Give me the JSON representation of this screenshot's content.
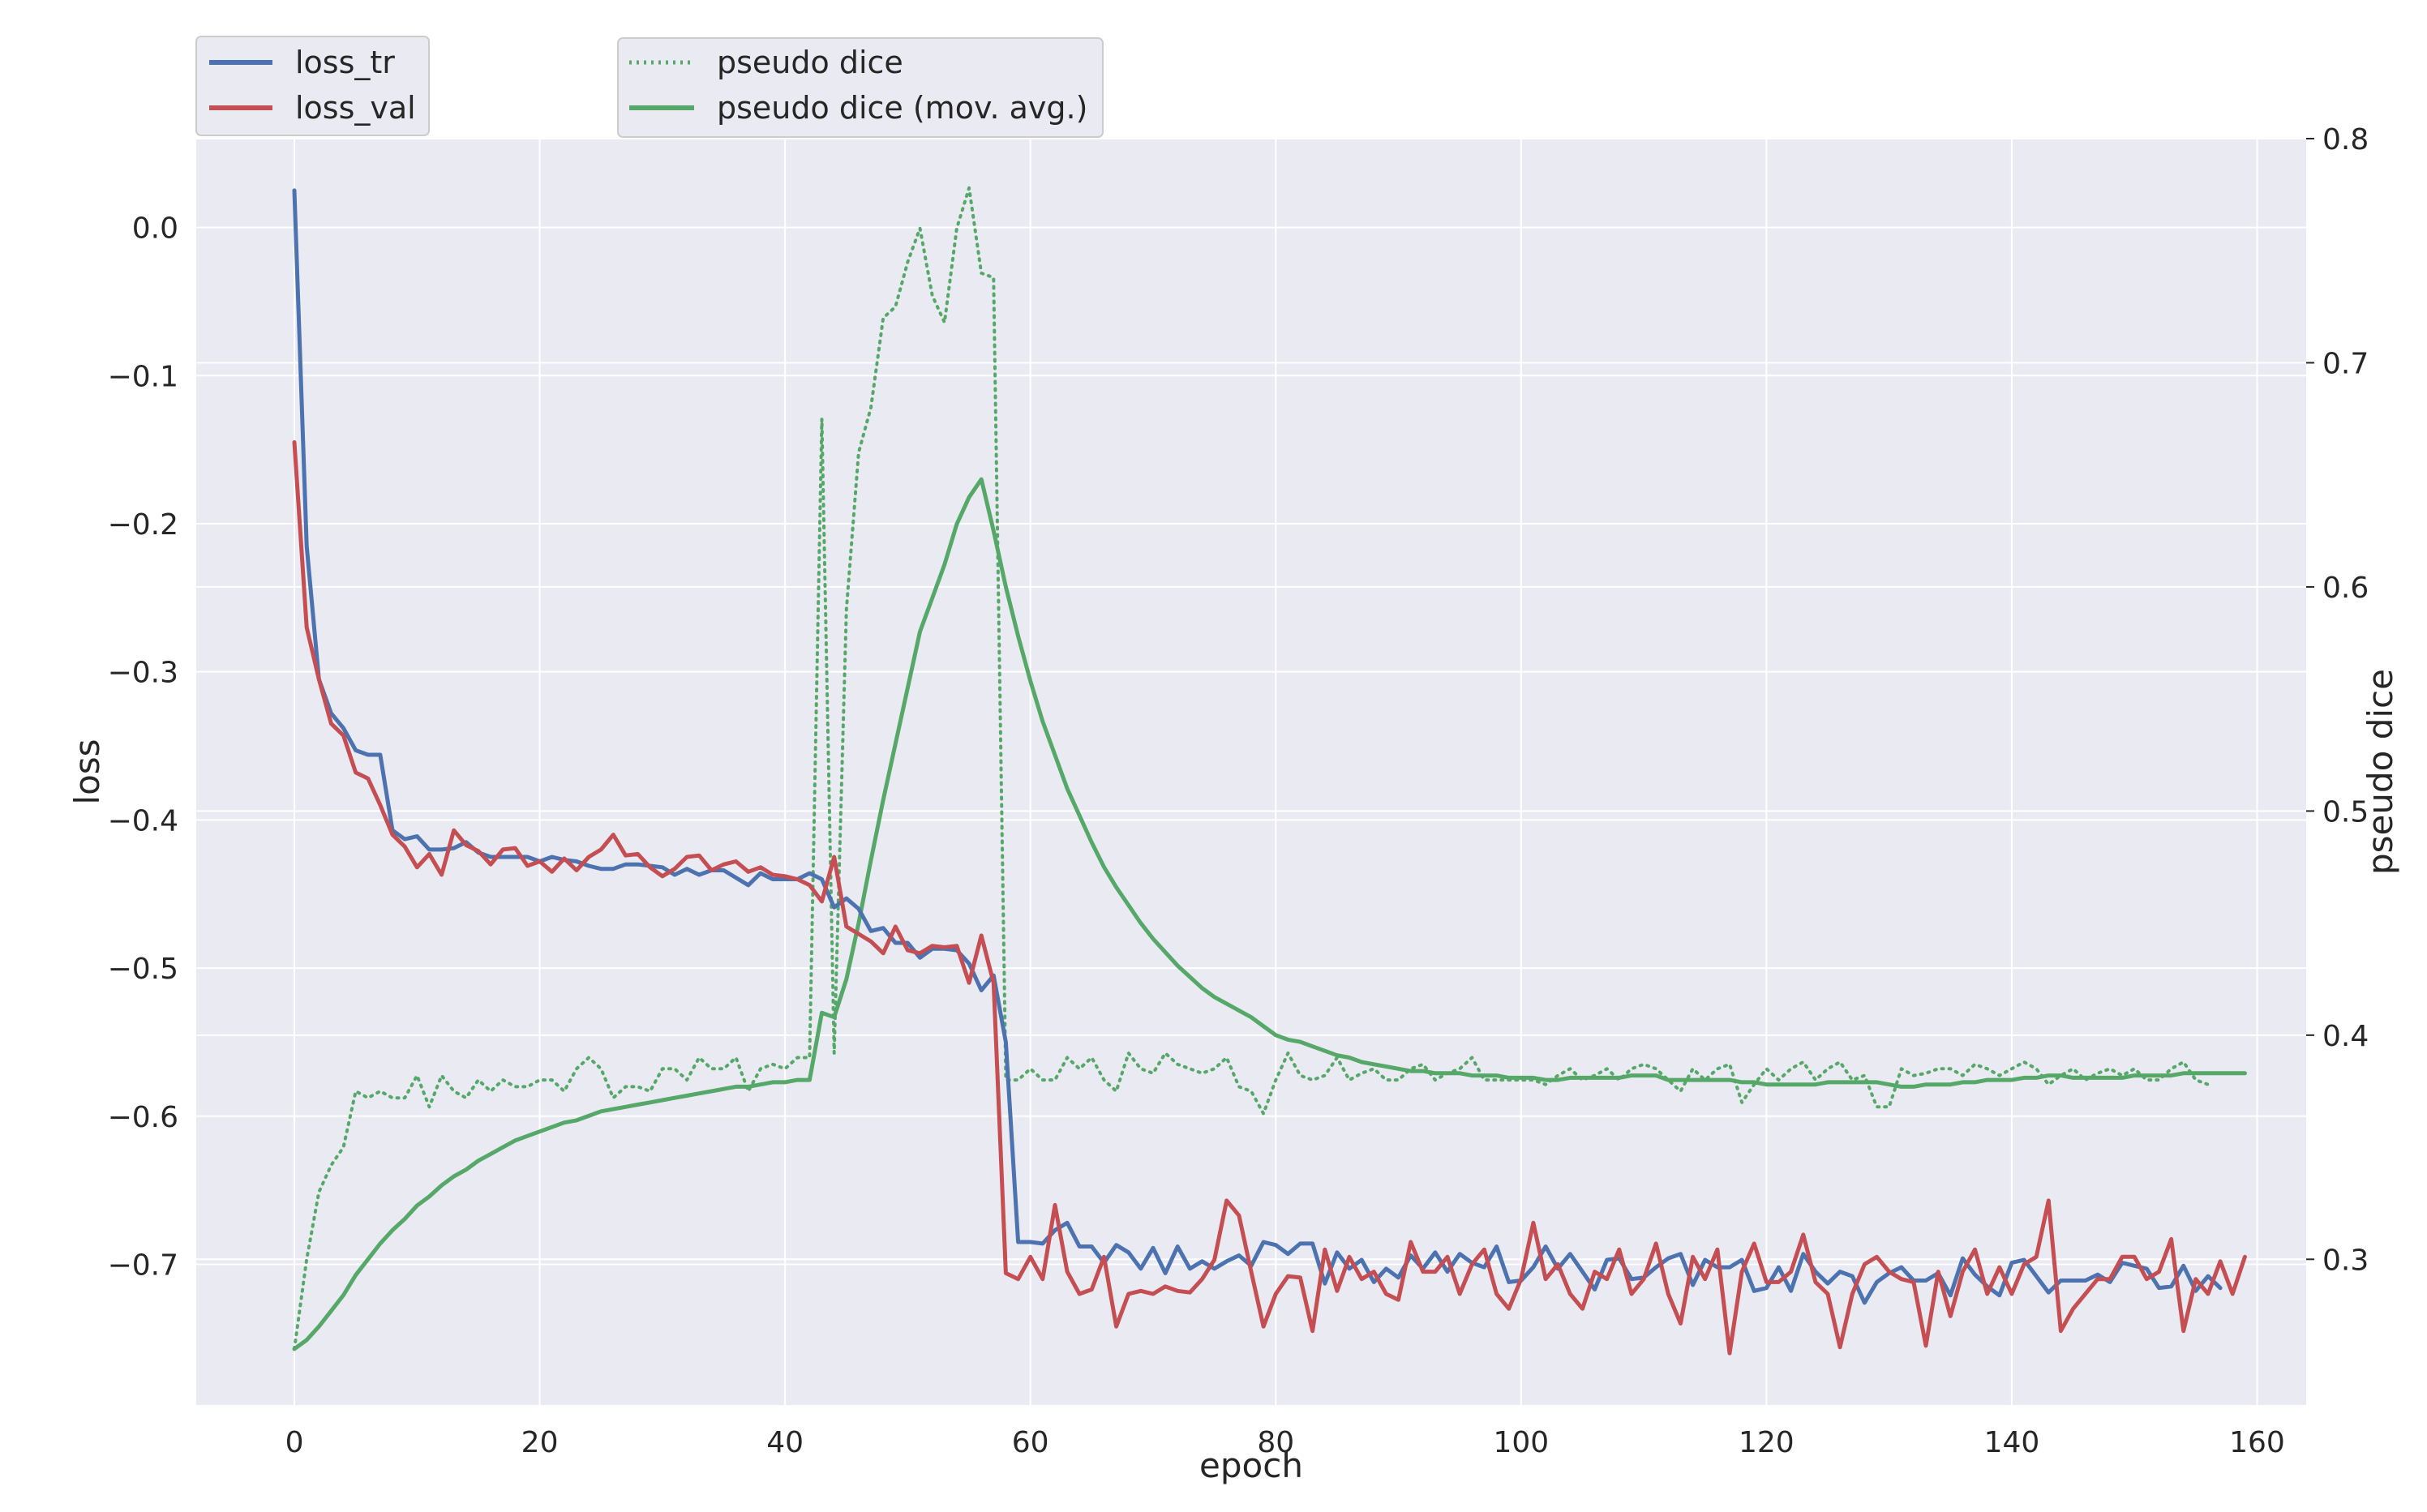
{
  "chart_data": {
    "type": "line",
    "xlabel": "epoch",
    "ylabel_left": "loss",
    "ylabel_right": "pseudo dice",
    "xlim": [
      -8,
      164
    ],
    "ylim_left": [
      -0.795,
      0.06
    ],
    "ylim_right": [
      0.235,
      0.8
    ],
    "grid": true,
    "x_ticks": [
      0,
      20,
      40,
      60,
      80,
      100,
      120,
      140,
      160
    ],
    "y_left_ticks": [
      0.0,
      -0.1,
      -0.2,
      -0.3,
      -0.4,
      -0.5,
      -0.6,
      -0.7
    ],
    "y_right_ticks": [
      0.8,
      0.7,
      0.6,
      0.5,
      0.4,
      0.3
    ],
    "legend_left": {
      "placement": "top-left",
      "entries": [
        "loss_tr",
        "loss_val"
      ]
    },
    "legend_right": {
      "placement": "top-center",
      "entries": [
        "pseudo dice",
        "pseudo dice (mov. avg.)"
      ]
    },
    "colors": {
      "loss_tr": "#4c72b0",
      "loss_val": "#c44e52",
      "pseudo_dice": "#55a868",
      "pseudo_dice_ma": "#55a868",
      "plot_bg": "#eaeaf2",
      "grid": "#ffffff"
    },
    "series": [
      {
        "name": "loss_tr",
        "axis": "left",
        "style": "solid",
        "values": [
          0.025,
          -0.215,
          -0.305,
          -0.328,
          -0.338,
          -0.353,
          -0.356,
          -0.356,
          -0.407,
          -0.413,
          -0.411,
          -0.42,
          -0.42,
          -0.419,
          -0.415,
          -0.422,
          -0.425,
          -0.425,
          -0.425,
          -0.425,
          -0.428,
          -0.425,
          -0.427,
          -0.428,
          -0.431,
          -0.433,
          -0.433,
          -0.43,
          -0.43,
          -0.431,
          -0.432,
          -0.437,
          -0.433,
          -0.437,
          -0.434,
          -0.434,
          -0.439,
          -0.444,
          -0.436,
          -0.44,
          -0.44,
          -0.44,
          -0.436,
          -0.44,
          -0.459,
          -0.453,
          -0.46,
          -0.475,
          -0.473,
          -0.483,
          -0.483,
          -0.493,
          -0.487,
          -0.487,
          -0.488,
          -0.497,
          -0.515,
          -0.505,
          -0.55,
          -0.685,
          -0.685,
          -0.686,
          -0.677,
          -0.672,
          -0.688,
          -0.688,
          -0.699,
          -0.687,
          -0.692,
          -0.703,
          -0.689,
          -0.706,
          -0.688,
          -0.703,
          -0.698,
          -0.703,
          -0.698,
          -0.694,
          -0.701,
          -0.685,
          -0.687,
          -0.693,
          -0.686,
          -0.686,
          -0.713,
          -0.692,
          -0.703,
          -0.697,
          -0.712,
          -0.703,
          -0.709,
          -0.694,
          -0.703,
          -0.692,
          -0.705,
          -0.693,
          -0.699,
          -0.702,
          -0.688,
          -0.712,
          -0.711,
          -0.702,
          -0.688,
          -0.703,
          -0.693,
          -0.705,
          -0.717,
          -0.697,
          -0.696,
          -0.71,
          -0.709,
          -0.702,
          -0.696,
          -0.693,
          -0.714,
          -0.697,
          -0.702,
          -0.702,
          -0.697,
          -0.718,
          -0.716,
          -0.702,
          -0.718,
          -0.693,
          -0.705,
          -0.713,
          -0.705,
          -0.708,
          -0.726,
          -0.712,
          -0.706,
          -0.702,
          -0.711,
          -0.711,
          -0.706,
          -0.721,
          -0.696,
          -0.707,
          -0.715,
          -0.721,
          -0.699,
          -0.697,
          -0.708,
          -0.719,
          -0.711,
          -0.711,
          -0.711,
          -0.707,
          -0.712,
          -0.699,
          -0.701,
          -0.703,
          -0.716,
          -0.715,
          -0.701,
          -0.718,
          -0.708,
          -0.716
        ]
      },
      {
        "name": "loss_val",
        "axis": "left",
        "style": "solid",
        "values": [
          -0.145,
          -0.27,
          -0.305,
          -0.335,
          -0.343,
          -0.368,
          -0.372,
          -0.39,
          -0.41,
          -0.418,
          -0.432,
          -0.423,
          -0.437,
          -0.407,
          -0.417,
          -0.421,
          -0.43,
          -0.42,
          -0.419,
          -0.431,
          -0.428,
          -0.435,
          -0.426,
          -0.434,
          -0.425,
          -0.42,
          -0.41,
          -0.424,
          -0.423,
          -0.432,
          -0.438,
          -0.433,
          -0.425,
          -0.424,
          -0.434,
          -0.43,
          -0.428,
          -0.435,
          -0.432,
          -0.437,
          -0.438,
          -0.44,
          -0.444,
          -0.455,
          -0.425,
          -0.472,
          -0.477,
          -0.482,
          -0.49,
          -0.472,
          -0.488,
          -0.49,
          -0.485,
          -0.486,
          -0.485,
          -0.51,
          -0.478,
          -0.51,
          -0.706,
          -0.71,
          -0.695,
          -0.71,
          -0.66,
          -0.705,
          -0.72,
          -0.717,
          -0.695,
          -0.742,
          -0.72,
          -0.718,
          -0.72,
          -0.715,
          -0.718,
          -0.719,
          -0.71,
          -0.697,
          -0.657,
          -0.667,
          -0.705,
          -0.742,
          -0.72,
          -0.708,
          -0.709,
          -0.745,
          -0.69,
          -0.718,
          -0.695,
          -0.71,
          -0.705,
          -0.72,
          -0.724,
          -0.685,
          -0.705,
          -0.705,
          -0.695,
          -0.72,
          -0.7,
          -0.69,
          -0.72,
          -0.73,
          -0.71,
          -0.672,
          -0.71,
          -0.7,
          -0.72,
          -0.73,
          -0.705,
          -0.71,
          -0.69,
          -0.72,
          -0.71,
          -0.686,
          -0.72,
          -0.74,
          -0.695,
          -0.71,
          -0.69,
          -0.76,
          -0.705,
          -0.686,
          -0.712,
          -0.712,
          -0.705,
          -0.68,
          -0.712,
          -0.72,
          -0.756,
          -0.72,
          -0.7,
          -0.695,
          -0.705,
          -0.71,
          -0.712,
          -0.755,
          -0.705,
          -0.735,
          -0.705,
          -0.69,
          -0.72,
          -0.702,
          -0.72,
          -0.7,
          -0.695,
          -0.657,
          -0.745,
          -0.73,
          -0.72,
          -0.71,
          -0.71,
          -0.695,
          -0.695,
          -0.71,
          -0.705,
          -0.683,
          -0.745,
          -0.71,
          -0.72,
          -0.698,
          -0.72,
          -0.695
        ]
      },
      {
        "name": "pseudo dice",
        "axis": "right",
        "style": "dotted",
        "values": [
          0.26,
          0.3,
          0.33,
          0.342,
          0.35,
          0.375,
          0.372,
          0.375,
          0.372,
          0.372,
          0.382,
          0.368,
          0.382,
          0.375,
          0.372,
          0.38,
          0.375,
          0.38,
          0.377,
          0.377,
          0.38,
          0.38,
          0.375,
          0.385,
          0.39,
          0.385,
          0.372,
          0.377,
          0.377,
          0.375,
          0.385,
          0.385,
          0.38,
          0.39,
          0.385,
          0.385,
          0.39,
          0.375,
          0.385,
          0.387,
          0.385,
          0.39,
          0.39,
          0.675,
          0.392,
          0.59,
          0.66,
          0.68,
          0.72,
          0.725,
          0.745,
          0.76,
          0.73,
          0.718,
          0.76,
          0.778,
          0.74,
          0.738,
          0.38,
          0.38,
          0.385,
          0.38,
          0.38,
          0.39,
          0.385,
          0.39,
          0.38,
          0.375,
          0.392,
          0.385,
          0.383,
          0.392,
          0.387,
          0.385,
          0.383,
          0.385,
          0.39,
          0.377,
          0.375,
          0.365,
          0.38,
          0.392,
          0.382,
          0.38,
          0.382,
          0.39,
          0.38,
          0.383,
          0.385,
          0.38,
          0.38,
          0.385,
          0.387,
          0.38,
          0.383,
          0.385,
          0.39,
          0.38,
          0.38,
          0.38,
          0.38,
          0.38,
          0.378,
          0.382,
          0.385,
          0.38,
          0.382,
          0.385,
          0.38,
          0.385,
          0.387,
          0.385,
          0.38,
          0.375,
          0.385,
          0.38,
          0.385,
          0.387,
          0.37,
          0.378,
          0.385,
          0.38,
          0.385,
          0.388,
          0.38,
          0.385,
          0.388,
          0.38,
          0.382,
          0.368,
          0.368,
          0.385,
          0.382,
          0.383,
          0.385,
          0.385,
          0.382,
          0.387,
          0.385,
          0.382,
          0.385,
          0.388,
          0.385,
          0.378,
          0.382,
          0.385,
          0.38,
          0.383,
          0.385,
          0.382,
          0.385,
          0.38,
          0.38,
          0.385,
          0.388,
          0.38,
          0.378
        ]
      },
      {
        "name": "pseudo dice (mov. avg.)",
        "axis": "right",
        "style": "solid",
        "values": [
          0.26,
          0.264,
          0.27,
          0.277,
          0.284,
          0.293,
          0.3,
          0.307,
          0.313,
          0.318,
          0.324,
          0.328,
          0.333,
          0.337,
          0.34,
          0.344,
          0.347,
          0.35,
          0.353,
          0.355,
          0.357,
          0.359,
          0.361,
          0.362,
          0.364,
          0.366,
          0.367,
          0.368,
          0.369,
          0.37,
          0.371,
          0.372,
          0.373,
          0.374,
          0.375,
          0.376,
          0.377,
          0.377,
          0.378,
          0.379,
          0.379,
          0.38,
          0.38,
          0.41,
          0.408,
          0.425,
          0.45,
          0.478,
          0.505,
          0.53,
          0.555,
          0.58,
          0.595,
          0.61,
          0.628,
          0.64,
          0.648,
          0.625,
          0.6,
          0.578,
          0.558,
          0.54,
          0.525,
          0.51,
          0.498,
          0.486,
          0.475,
          0.466,
          0.458,
          0.45,
          0.443,
          0.437,
          0.431,
          0.426,
          0.421,
          0.417,
          0.414,
          0.411,
          0.408,
          0.404,
          0.4,
          0.398,
          0.397,
          0.395,
          0.393,
          0.391,
          0.39,
          0.388,
          0.387,
          0.386,
          0.385,
          0.384,
          0.384,
          0.383,
          0.383,
          0.383,
          0.382,
          0.382,
          0.382,
          0.381,
          0.381,
          0.381,
          0.38,
          0.38,
          0.381,
          0.381,
          0.381,
          0.381,
          0.381,
          0.382,
          0.382,
          0.382,
          0.38,
          0.38,
          0.38,
          0.38,
          0.38,
          0.38,
          0.379,
          0.379,
          0.378,
          0.378,
          0.378,
          0.378,
          0.378,
          0.379,
          0.379,
          0.379,
          0.379,
          0.379,
          0.378,
          0.377,
          0.377,
          0.378,
          0.378,
          0.378,
          0.379,
          0.379,
          0.38,
          0.38,
          0.38,
          0.381,
          0.381,
          0.382,
          0.382,
          0.381,
          0.381,
          0.381,
          0.381,
          0.381,
          0.382,
          0.382,
          0.382,
          0.382,
          0.383,
          0.383,
          0.383,
          0.383,
          0.383,
          0.383
        ]
      }
    ]
  }
}
